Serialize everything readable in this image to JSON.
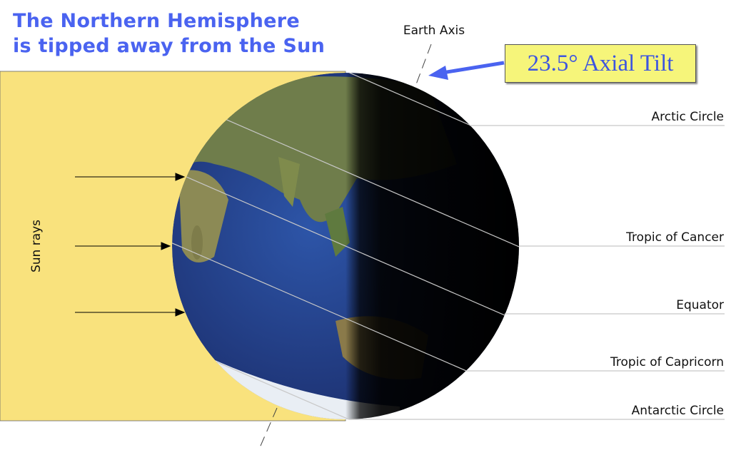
{
  "title": {
    "line1": "The Northern Hemisphere",
    "line2": "is tipped away from the Sun"
  },
  "axis_label": "Earth Axis",
  "tilt_label": "23.5° Axial Tilt",
  "sun_label": "Sun rays",
  "circles": [
    {
      "key": "arctic",
      "label": "Arctic Circle"
    },
    {
      "key": "cancer",
      "label": "Tropic of Cancer"
    },
    {
      "key": "equator",
      "label": "Equator"
    },
    {
      "key": "capricorn",
      "label": "Tropic of Capricorn"
    },
    {
      "key": "antarctic",
      "label": "Antarctic Circle"
    }
  ],
  "colors": {
    "title": "#4a63f0",
    "sunlight": "#f9e27d",
    "tilt_box": "#f6f57a",
    "ocean": "#27448f",
    "night": "#000000"
  }
}
